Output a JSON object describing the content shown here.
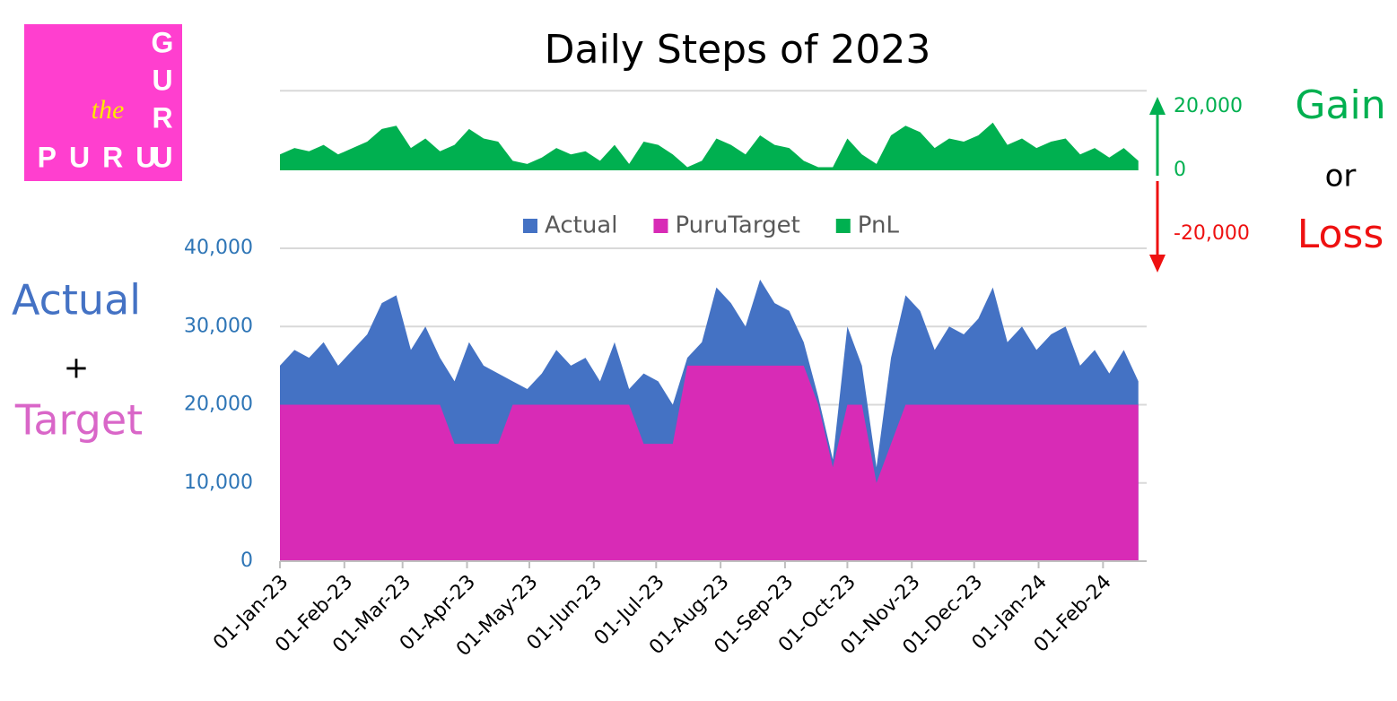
{
  "chart_data": {
    "type": "area",
    "title": "Daily Steps of 2023",
    "logo": {
      "small": "the",
      "vertical": [
        "G",
        "U",
        "R",
        "U"
      ],
      "bottom": "PURU"
    },
    "left_annotation": [
      "Actual",
      "+",
      "Target"
    ],
    "right_annotation": [
      "Gain",
      "or",
      "Loss"
    ],
    "x": [
      "01-Jan-23",
      "08-Jan-23",
      "15-Jan-23",
      "22-Jan-23",
      "29-Jan-23",
      "05-Feb-23",
      "12-Feb-23",
      "19-Feb-23",
      "26-Feb-23",
      "05-Mar-23",
      "12-Mar-23",
      "19-Mar-23",
      "26-Mar-23",
      "02-Apr-23",
      "09-Apr-23",
      "16-Apr-23",
      "23-Apr-23",
      "30-Apr-23",
      "07-May-23",
      "14-May-23",
      "21-May-23",
      "28-May-23",
      "04-Jun-23",
      "11-Jun-23",
      "18-Jun-23",
      "25-Jun-23",
      "02-Jul-23",
      "09-Jul-23",
      "16-Jul-23",
      "23-Jul-23",
      "30-Jul-23",
      "06-Aug-23",
      "13-Aug-23",
      "20-Aug-23",
      "27-Aug-23",
      "03-Sep-23",
      "10-Sep-23",
      "17-Sep-23",
      "24-Sep-23",
      "01-Oct-23",
      "08-Oct-23",
      "15-Oct-23",
      "22-Oct-23",
      "29-Oct-23",
      "05-Nov-23",
      "12-Nov-23",
      "19-Nov-23",
      "26-Nov-23",
      "03-Dec-23",
      "10-Dec-23",
      "17-Dec-23",
      "24-Dec-23",
      "31-Dec-23",
      "07-Jan-24",
      "14-Jan-24",
      "21-Jan-24",
      "28-Jan-24",
      "04-Feb-24",
      "11-Feb-24",
      "18-Feb-24"
    ],
    "xlim": [
      "01-Jan-23",
      "22-Feb-24"
    ],
    "xticks": [
      "01-Jan-23",
      "01-Feb-23",
      "01-Mar-23",
      "01-Apr-23",
      "01-May-23",
      "01-Jun-23",
      "01-Jul-23",
      "01-Aug-23",
      "01-Sep-23",
      "01-Oct-23",
      "01-Nov-23",
      "01-Dec-23",
      "01-Jan-24",
      "01-Feb-24"
    ],
    "ylim": [
      0,
      45000
    ],
    "yticks": [
      0,
      {
        "value": 10000,
        "label": "10,000"
      },
      {
        "value": 20000,
        "label": "20,000"
      },
      {
        "value": 30000,
        "label": "30,000"
      },
      {
        "value": 40000,
        "label": "40,000"
      }
    ],
    "y2lim": [
      -25000,
      25000
    ],
    "y2ticks": [
      {
        "value": 20000,
        "label": "20,000"
      },
      0,
      {
        "value": -20000,
        "label": "-20,000"
      }
    ],
    "grid": true,
    "legend": "top",
    "series": [
      {
        "name": "Actual",
        "color": "#4472c4",
        "values": [
          25000,
          27000,
          26000,
          28000,
          25000,
          27000,
          29000,
          33000,
          34000,
          27000,
          30000,
          26000,
          23000,
          28000,
          25000,
          24000,
          23000,
          22000,
          24000,
          27000,
          25000,
          26000,
          23000,
          28000,
          22000,
          24000,
          23000,
          20000,
          26000,
          28000,
          35000,
          33000,
          30000,
          36000,
          33000,
          32000,
          28000,
          21000,
          13000,
          30000,
          25000,
          12000,
          26000,
          34000,
          32000,
          27000,
          30000,
          29000,
          31000,
          35000,
          28000,
          30000,
          27000,
          29000,
          30000,
          25000,
          27000,
          24000,
          27000,
          23000
        ]
      },
      {
        "name": "PuruTarget",
        "color": "#d82bb6",
        "values": [
          20000,
          20000,
          20000,
          20000,
          20000,
          20000,
          20000,
          20000,
          20000,
          20000,
          20000,
          20000,
          15000,
          15000,
          15000,
          15000,
          20000,
          20000,
          20000,
          20000,
          20000,
          20000,
          20000,
          20000,
          20000,
          15000,
          15000,
          15000,
          25000,
          25000,
          25000,
          25000,
          25000,
          25000,
          25000,
          25000,
          25000,
          20000,
          12000,
          20000,
          20000,
          10000,
          15000,
          20000,
          20000,
          20000,
          20000,
          20000,
          20000,
          20000,
          20000,
          20000,
          20000,
          20000,
          20000,
          20000,
          20000,
          20000,
          20000,
          20000
        ]
      },
      {
        "name": "PnL",
        "color": "#00b050",
        "axis": "y2",
        "values": [
          5000,
          7000,
          6000,
          8000,
          5000,
          7000,
          9000,
          13000,
          14000,
          7000,
          10000,
          6000,
          8000,
          13000,
          10000,
          9000,
          3000,
          2000,
          4000,
          7000,
          5000,
          6000,
          3000,
          8000,
          2000,
          9000,
          8000,
          5000,
          1000,
          3000,
          10000,
          8000,
          5000,
          11000,
          8000,
          7000,
          3000,
          1000,
          1000,
          10000,
          5000,
          2000,
          11000,
          14000,
          12000,
          7000,
          10000,
          9000,
          11000,
          15000,
          8000,
          10000,
          7000,
          9000,
          10000,
          5000,
          7000,
          4000,
          7000,
          3000
        ]
      }
    ]
  }
}
